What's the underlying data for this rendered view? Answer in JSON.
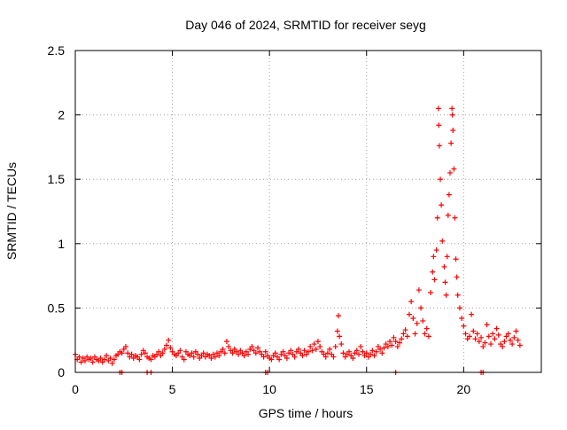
{
  "chart_data": {
    "type": "scatter",
    "title": "Day 046 of 2024, SRMTID for receiver seyg",
    "xlabel": "GPS time / hours",
    "ylabel": "SRMTID / TECUs",
    "xlim": [
      0,
      24
    ],
    "ylim": [
      0,
      2.5
    ],
    "xticks": [
      0,
      5,
      10,
      15,
      20
    ],
    "yticks": [
      0,
      0.5,
      1,
      1.5,
      2,
      2.5
    ],
    "x_tick_labels": [
      "0",
      "5",
      "10",
      "15",
      "20"
    ],
    "y_tick_labels": [
      "0",
      "0.5",
      "1",
      "1.5",
      "2",
      "2.5"
    ],
    "grid": true,
    "marker": "+",
    "series": [
      {
        "name": "SRMTID",
        "color": "#ff0000",
        "points": [
          [
            0.0,
            0.14
          ],
          [
            0.1,
            0.1
          ],
          [
            0.2,
            0.12
          ],
          [
            0.3,
            0.08
          ],
          [
            0.4,
            0.11
          ],
          [
            0.5,
            0.09
          ],
          [
            0.6,
            0.12
          ],
          [
            0.7,
            0.1
          ],
          [
            0.8,
            0.11
          ],
          [
            0.9,
            0.08
          ],
          [
            1.0,
            0.12
          ],
          [
            1.1,
            0.1
          ],
          [
            1.2,
            0.09
          ],
          [
            1.3,
            0.11
          ],
          [
            1.4,
            0.08
          ],
          [
            1.5,
            0.1
          ],
          [
            1.6,
            0.13
          ],
          [
            1.7,
            0.09
          ],
          [
            1.8,
            0.11
          ],
          [
            1.9,
            0.07
          ],
          [
            2.0,
            0.1
          ],
          [
            2.1,
            0.13
          ],
          [
            2.2,
            0.14
          ],
          [
            2.3,
            0.16
          ],
          [
            2.4,
            0.15
          ],
          [
            2.5,
            0.18
          ],
          [
            2.6,
            0.2
          ],
          [
            2.7,
            0.15
          ],
          [
            2.8,
            0.12
          ],
          [
            2.9,
            0.14
          ],
          [
            3.0,
            0.11
          ],
          [
            3.1,
            0.13
          ],
          [
            3.2,
            0.12
          ],
          [
            3.3,
            0.1
          ],
          [
            3.4,
            0.14
          ],
          [
            3.5,
            0.17
          ],
          [
            3.6,
            0.15
          ],
          [
            3.7,
            0.12
          ],
          [
            3.8,
            0.11
          ],
          [
            3.9,
            0.1
          ],
          [
            4.0,
            0.13
          ],
          [
            4.1,
            0.12
          ],
          [
            4.2,
            0.14
          ],
          [
            4.3,
            0.16
          ],
          [
            4.4,
            0.13
          ],
          [
            4.5,
            0.15
          ],
          [
            4.6,
            0.18
          ],
          [
            4.7,
            0.21
          ],
          [
            4.8,
            0.25
          ],
          [
            4.9,
            0.19
          ],
          [
            5.0,
            0.16
          ],
          [
            5.1,
            0.14
          ],
          [
            5.2,
            0.13
          ],
          [
            5.3,
            0.15
          ],
          [
            5.4,
            0.17
          ],
          [
            5.5,
            0.12
          ],
          [
            5.6,
            0.1
          ],
          [
            5.7,
            0.16
          ],
          [
            5.8,
            0.14
          ],
          [
            5.9,
            0.13
          ],
          [
            6.0,
            0.15
          ],
          [
            6.1,
            0.12
          ],
          [
            6.2,
            0.16
          ],
          [
            6.3,
            0.14
          ],
          [
            6.4,
            0.11
          ],
          [
            6.5,
            0.13
          ],
          [
            6.6,
            0.15
          ],
          [
            6.7,
            0.12
          ],
          [
            6.8,
            0.14
          ],
          [
            6.9,
            0.13
          ],
          [
            7.0,
            0.11
          ],
          [
            7.1,
            0.14
          ],
          [
            7.2,
            0.12
          ],
          [
            7.3,
            0.15
          ],
          [
            7.4,
            0.13
          ],
          [
            7.5,
            0.16
          ],
          [
            7.6,
            0.18
          ],
          [
            7.7,
            0.15
          ],
          [
            7.8,
            0.24
          ],
          [
            7.9,
            0.2
          ],
          [
            8.0,
            0.17
          ],
          [
            8.1,
            0.15
          ],
          [
            8.2,
            0.18
          ],
          [
            8.3,
            0.16
          ],
          [
            8.4,
            0.14
          ],
          [
            8.5,
            0.17
          ],
          [
            8.6,
            0.15
          ],
          [
            8.7,
            0.13
          ],
          [
            8.8,
            0.16
          ],
          [
            8.9,
            0.14
          ],
          [
            9.0,
            0.18
          ],
          [
            9.1,
            0.2
          ],
          [
            9.2,
            0.17
          ],
          [
            9.3,
            0.15
          ],
          [
            9.4,
            0.19
          ],
          [
            9.5,
            0.16
          ],
          [
            9.6,
            0.14
          ],
          [
            9.7,
            0.12
          ],
          [
            9.8,
            0.16
          ],
          [
            9.9,
            0.13
          ],
          [
            10.0,
            0.11
          ],
          [
            10.1,
            0.1
          ],
          [
            10.2,
            0.13
          ],
          [
            10.3,
            0.15
          ],
          [
            10.4,
            0.12
          ],
          [
            10.5,
            0.1
          ],
          [
            10.6,
            0.14
          ],
          [
            10.7,
            0.16
          ],
          [
            10.8,
            0.13
          ],
          [
            10.9,
            0.11
          ],
          [
            11.0,
            0.15
          ],
          [
            11.1,
            0.17
          ],
          [
            11.2,
            0.14
          ],
          [
            11.3,
            0.12
          ],
          [
            11.4,
            0.16
          ],
          [
            11.5,
            0.18
          ],
          [
            11.6,
            0.15
          ],
          [
            11.7,
            0.13
          ],
          [
            11.8,
            0.17
          ],
          [
            11.9,
            0.14
          ],
          [
            12.0,
            0.16
          ],
          [
            12.1,
            0.2
          ],
          [
            12.2,
            0.17
          ],
          [
            12.3,
            0.22
          ],
          [
            12.4,
            0.18
          ],
          [
            12.5,
            0.24
          ],
          [
            12.6,
            0.2
          ],
          [
            12.7,
            0.16
          ],
          [
            12.8,
            0.14
          ],
          [
            12.9,
            0.12
          ],
          [
            13.0,
            0.15
          ],
          [
            13.1,
            0.18
          ],
          [
            13.2,
            0.14
          ],
          [
            13.3,
            0.12
          ],
          [
            13.4,
            0.2
          ],
          [
            13.5,
            0.32
          ],
          [
            13.55,
            0.44
          ],
          [
            13.6,
            0.28
          ],
          [
            13.7,
            0.22
          ],
          [
            13.8,
            0.15
          ],
          [
            13.9,
            0.12
          ],
          [
            14.0,
            0.14
          ],
          [
            14.1,
            0.16
          ],
          [
            14.2,
            0.13
          ],
          [
            14.3,
            0.11
          ],
          [
            14.4,
            0.15
          ],
          [
            14.5,
            0.17
          ],
          [
            14.6,
            0.14
          ],
          [
            14.7,
            0.2
          ],
          [
            14.8,
            0.16
          ],
          [
            14.9,
            0.13
          ],
          [
            15.0,
            0.15
          ],
          [
            15.1,
            0.12
          ],
          [
            15.2,
            0.14
          ],
          [
            15.3,
            0.17
          ],
          [
            15.4,
            0.13
          ],
          [
            15.5,
            0.16
          ],
          [
            15.6,
            0.2
          ],
          [
            15.7,
            0.18
          ],
          [
            15.8,
            0.15
          ],
          [
            15.9,
            0.19
          ],
          [
            16.0,
            0.22
          ],
          [
            16.1,
            0.2
          ],
          [
            16.2,
            0.24
          ],
          [
            16.3,
            0.21
          ],
          [
            16.4,
            0.27
          ],
          [
            16.5,
            0.24
          ],
          [
            16.6,
            0.2
          ],
          [
            16.7,
            0.23
          ],
          [
            16.8,
            0.26
          ],
          [
            16.9,
            0.3
          ],
          [
            17.0,
            0.33
          ],
          [
            17.1,
            0.28
          ],
          [
            17.2,
            0.45
          ],
          [
            17.3,
            0.55
          ],
          [
            17.4,
            0.42
          ],
          [
            17.5,
            0.3
          ],
          [
            17.6,
            0.38
          ],
          [
            17.7,
            0.64
          ],
          [
            17.8,
            0.5
          ],
          [
            17.9,
            0.4
          ],
          [
            18.0,
            0.3
          ],
          [
            18.1,
            0.34
          ],
          [
            18.2,
            0.28
          ],
          [
            18.3,
            0.62
          ],
          [
            18.4,
            0.78
          ],
          [
            18.45,
            0.9
          ],
          [
            18.5,
            0.72
          ],
          [
            18.6,
            0.95
          ],
          [
            18.65,
            1.2
          ],
          [
            18.7,
            2.05
          ],
          [
            18.72,
            1.92
          ],
          [
            18.75,
            1.76
          ],
          [
            18.8,
            1.5
          ],
          [
            18.85,
            1.3
          ],
          [
            18.9,
            1.02
          ],
          [
            19.0,
            0.82
          ],
          [
            19.05,
            0.7
          ],
          [
            19.1,
            0.6
          ],
          [
            19.15,
            0.9
          ],
          [
            19.2,
            1.22
          ],
          [
            19.25,
            1.38
          ],
          [
            19.3,
            1.55
          ],
          [
            19.35,
            1.78
          ],
          [
            19.4,
            2.05
          ],
          [
            19.42,
            2.0
          ],
          [
            19.45,
            1.88
          ],
          [
            19.5,
            1.58
          ],
          [
            19.55,
            1.2
          ],
          [
            19.6,
            0.88
          ],
          [
            19.65,
            0.74
          ],
          [
            19.7,
            0.6
          ],
          [
            19.8,
            0.5
          ],
          [
            19.9,
            0.42
          ],
          [
            20.0,
            0.36
          ],
          [
            20.1,
            0.3
          ],
          [
            20.2,
            0.26
          ],
          [
            20.3,
            0.28
          ],
          [
            20.4,
            0.45
          ],
          [
            20.5,
            0.32
          ],
          [
            20.6,
            0.26
          ],
          [
            20.7,
            0.3
          ],
          [
            20.8,
            0.24
          ],
          [
            20.9,
            0.27
          ],
          [
            21.0,
            0.2
          ],
          [
            21.1,
            0.23
          ],
          [
            21.2,
            0.37
          ],
          [
            21.3,
            0.28
          ],
          [
            21.4,
            0.22
          ],
          [
            21.5,
            0.3
          ],
          [
            21.6,
            0.26
          ],
          [
            21.7,
            0.34
          ],
          [
            21.8,
            0.29
          ],
          [
            21.9,
            0.22
          ],
          [
            22.0,
            0.2
          ],
          [
            22.1,
            0.24
          ],
          [
            22.2,
            0.28
          ],
          [
            22.3,
            0.3
          ],
          [
            22.4,
            0.25
          ],
          [
            22.5,
            0.22
          ],
          [
            22.6,
            0.27
          ],
          [
            22.7,
            0.32
          ],
          [
            22.8,
            0.25
          ],
          [
            22.9,
            0.21
          ],
          [
            2.3,
            0.0
          ],
          [
            2.4,
            0.0
          ],
          [
            3.7,
            0.0
          ],
          [
            3.9,
            0.0
          ],
          [
            9.8,
            0.0
          ],
          [
            9.9,
            0.0
          ],
          [
            16.5,
            0.0
          ],
          [
            20.9,
            0.0
          ],
          [
            21.0,
            0.0
          ]
        ]
      }
    ]
  }
}
